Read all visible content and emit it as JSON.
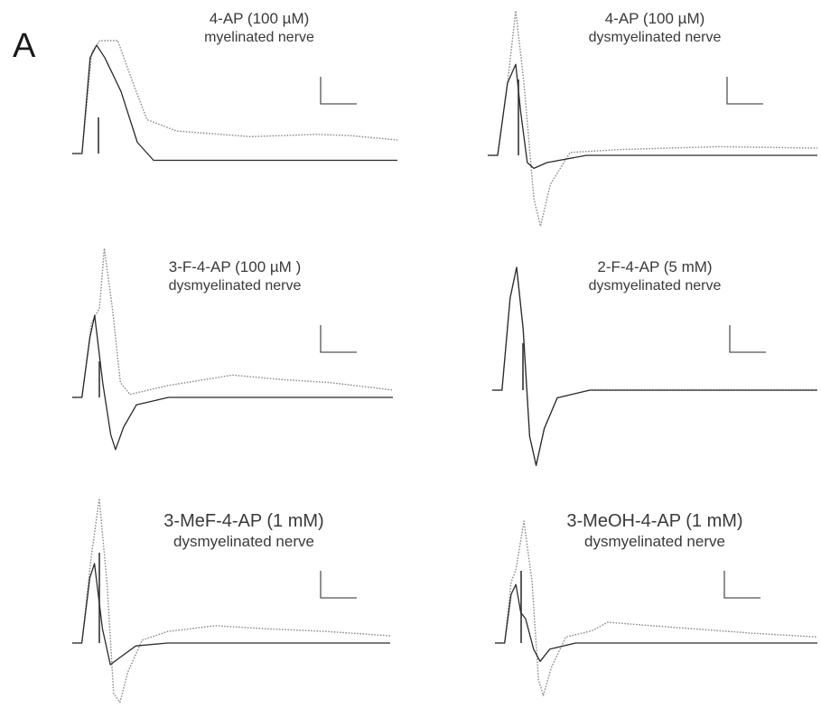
{
  "figure": {
    "panel_letter": "A"
  },
  "chart_data": [
    {
      "type": "line",
      "title": "4-AP (100 µM)",
      "subtitle": "myelinated nerve",
      "series": [
        {
          "style": "dotted",
          "points": [
            [
              0,
              0
            ],
            [
              0.03,
              0
            ],
            [
              0.06,
              0.9
            ],
            [
              0.085,
              1.0
            ],
            [
              0.14,
              1.0
            ],
            [
              0.19,
              0.6
            ],
            [
              0.23,
              0.3
            ],
            [
              0.32,
              0.2
            ],
            [
              0.55,
              0.15
            ],
            [
              0.75,
              0.17
            ],
            [
              0.85,
              0.16
            ],
            [
              1,
              0.12
            ]
          ]
        },
        {
          "style": "solid",
          "points": [
            [
              0,
              0
            ],
            [
              0.03,
              0
            ],
            [
              0.055,
              0.85
            ],
            [
              0.075,
              0.96
            ],
            [
              0.1,
              0.85
            ],
            [
              0.15,
              0.55
            ],
            [
              0.2,
              0.1
            ],
            [
              0.25,
              -0.06
            ],
            [
              0.35,
              -0.06
            ],
            [
              1,
              -0.06
            ]
          ]
        }
      ]
    },
    {
      "type": "line",
      "title": "4-AP (100 µM)",
      "subtitle": "dysmyelinated nerve",
      "series": [
        {
          "style": "dotted",
          "points": [
            [
              0,
              0
            ],
            [
              0.03,
              0
            ],
            [
              0.06,
              0.5
            ],
            [
              0.085,
              1.0
            ],
            [
              0.11,
              0.5
            ],
            [
              0.14,
              -0.3
            ],
            [
              0.16,
              -0.49
            ],
            [
              0.19,
              -0.2
            ],
            [
              0.25,
              0.02
            ],
            [
              0.4,
              0.04
            ],
            [
              0.7,
              0.06
            ],
            [
              1,
              0.05
            ]
          ]
        },
        {
          "style": "solid",
          "points": [
            [
              0,
              0
            ],
            [
              0.03,
              0
            ],
            [
              0.06,
              0.5
            ],
            [
              0.085,
              0.63
            ],
            [
              0.1,
              0.3
            ],
            [
              0.12,
              -0.05
            ],
            [
              0.14,
              -0.09
            ],
            [
              0.18,
              -0.05
            ],
            [
              0.3,
              0
            ],
            [
              1,
              0
            ]
          ]
        }
      ]
    },
    {
      "type": "line",
      "title": "3-F-4-AP (100 µM )",
      "subtitle": "dysmyelinated nerve",
      "series": [
        {
          "style": "dotted",
          "points": [
            [
              0,
              0
            ],
            [
              0.03,
              0
            ],
            [
              0.06,
              0.5
            ],
            [
              0.085,
              0.6
            ],
            [
              0.1,
              1.0
            ],
            [
              0.125,
              0.6
            ],
            [
              0.15,
              0.1
            ],
            [
              0.18,
              0.02
            ],
            [
              0.3,
              0.08
            ],
            [
              0.5,
              0.15
            ],
            [
              0.65,
              0.12
            ],
            [
              0.8,
              0.1
            ],
            [
              1,
              0.05
            ]
          ]
        },
        {
          "style": "solid",
          "points": [
            [
              0,
              0
            ],
            [
              0.03,
              0
            ],
            [
              0.055,
              0.4
            ],
            [
              0.07,
              0.55
            ],
            [
              0.095,
              0.1
            ],
            [
              0.12,
              -0.25
            ],
            [
              0.135,
              -0.35
            ],
            [
              0.16,
              -0.2
            ],
            [
              0.2,
              -0.05
            ],
            [
              0.3,
              0
            ],
            [
              1,
              0
            ]
          ]
        }
      ]
    },
    {
      "type": "line",
      "title": "2-F-4-AP (5 mM)",
      "subtitle": "dysmyelinated nerve",
      "series": [
        {
          "style": "dotted",
          "points": [
            [
              0,
              0
            ],
            [
              0.03,
              0
            ],
            [
              0.055,
              0.6
            ],
            [
              0.075,
              0.8
            ],
            [
              0.095,
              0.4
            ],
            [
              0.115,
              -0.3
            ],
            [
              0.135,
              -0.49
            ],
            [
              0.16,
              -0.25
            ],
            [
              0.2,
              -0.05
            ],
            [
              0.3,
              0
            ],
            [
              1,
              0
            ]
          ]
        },
        {
          "style": "solid",
          "points": [
            [
              0,
              0
            ],
            [
              0.03,
              0
            ],
            [
              0.055,
              0.6
            ],
            [
              0.075,
              0.8
            ],
            [
              0.095,
              0.4
            ],
            [
              0.115,
              -0.3
            ],
            [
              0.135,
              -0.49
            ],
            [
              0.16,
              -0.25
            ],
            [
              0.2,
              -0.05
            ],
            [
              0.3,
              0
            ],
            [
              1,
              0
            ]
          ]
        }
      ]
    },
    {
      "type": "line",
      "title": "3-MeF-4-AP (1 mM)",
      "subtitle": "dysmyelinated nerve",
      "series": [
        {
          "style": "dotted",
          "points": [
            [
              0,
              0
            ],
            [
              0.03,
              0
            ],
            [
              0.06,
              0.6
            ],
            [
              0.085,
              1.0
            ],
            [
              0.11,
              0.4
            ],
            [
              0.13,
              -0.35
            ],
            [
              0.15,
              -0.41
            ],
            [
              0.175,
              -0.2
            ],
            [
              0.22,
              0.02
            ],
            [
              0.3,
              0.08
            ],
            [
              0.45,
              0.12
            ],
            [
              0.6,
              0.1
            ],
            [
              0.8,
              0.08
            ],
            [
              1,
              0.05
            ]
          ]
        },
        {
          "style": "solid",
          "points": [
            [
              0,
              0
            ],
            [
              0.03,
              0
            ],
            [
              0.055,
              0.45
            ],
            [
              0.07,
              0.55
            ],
            [
              0.095,
              0.1
            ],
            [
              0.12,
              -0.15
            ],
            [
              0.15,
              -0.1
            ],
            [
              0.2,
              -0.02
            ],
            [
              0.3,
              0
            ],
            [
              1,
              0
            ]
          ]
        }
      ]
    },
    {
      "type": "line",
      "title": "3-MeOH-4-AP (1 mM)",
      "subtitle": "dysmyelinated nerve",
      "series": [
        {
          "style": "dotted",
          "points": [
            [
              0,
              0
            ],
            [
              0.03,
              0
            ],
            [
              0.05,
              0.5
            ],
            [
              0.065,
              0.6
            ],
            [
              0.09,
              1.0
            ],
            [
              0.115,
              0.5
            ],
            [
              0.135,
              -0.3
            ],
            [
              0.15,
              -0.43
            ],
            [
              0.175,
              -0.2
            ],
            [
              0.22,
              0.05
            ],
            [
              0.3,
              0.1
            ],
            [
              0.35,
              0.17
            ],
            [
              0.45,
              0.15
            ],
            [
              0.6,
              0.12
            ],
            [
              0.8,
              0.08
            ],
            [
              1,
              0.05
            ]
          ]
        },
        {
          "style": "solid",
          "points": [
            [
              0,
              0
            ],
            [
              0.03,
              0
            ],
            [
              0.05,
              0.4
            ],
            [
              0.065,
              0.48
            ],
            [
              0.08,
              0.25
            ],
            [
              0.095,
              0.2
            ],
            [
              0.12,
              -0.05
            ],
            [
              0.14,
              -0.15
            ],
            [
              0.17,
              -0.05
            ],
            [
              0.25,
              0
            ],
            [
              1,
              0
            ]
          ]
        }
      ]
    }
  ]
}
